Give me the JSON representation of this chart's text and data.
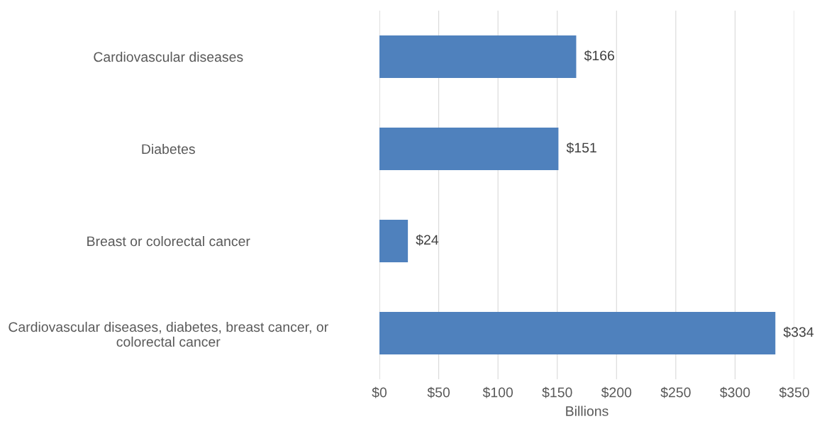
{
  "chart_data": {
    "type": "bar",
    "orientation": "horizontal",
    "xlabel": "Billions",
    "categories": [
      "Cardiovascular diseases",
      "Diabetes",
      "Breast or colorectal cancer",
      "Cardiovascular diseases, diabetes, breast cancer, or\ncolorectal cancer"
    ],
    "values": [
      166,
      151,
      24,
      334
    ],
    "value_labels": [
      "$166",
      "$151",
      "$24",
      "$334"
    ],
    "color": "#4f81bd",
    "xlim": [
      0,
      350
    ],
    "xticks": [
      {
        "value": 0,
        "label": "$0"
      },
      {
        "value": 50,
        "label": "$50"
      },
      {
        "value": 100,
        "label": "$100"
      },
      {
        "value": 150,
        "label": "$150"
      },
      {
        "value": 200,
        "label": "$200"
      },
      {
        "value": 250,
        "label": "$250"
      },
      {
        "value": 300,
        "label": "$300"
      },
      {
        "value": 350,
        "label": "$350"
      }
    ],
    "grid": "x",
    "legend": false
  }
}
